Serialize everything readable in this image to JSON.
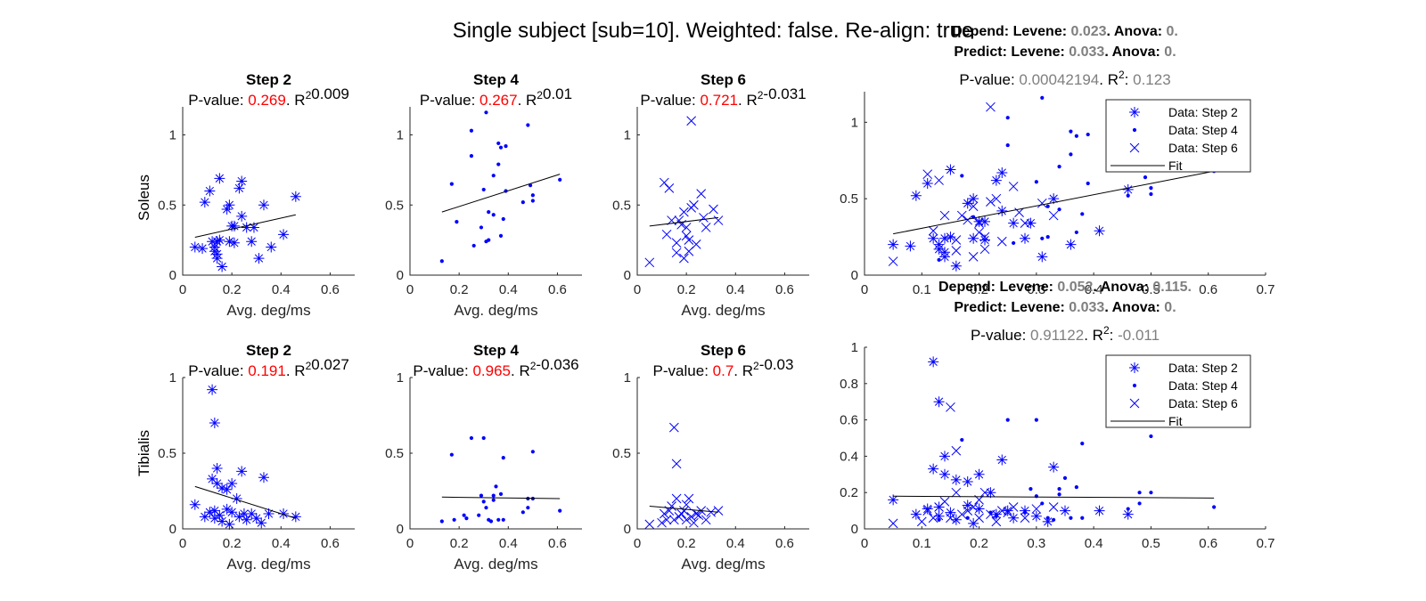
{
  "figure": {
    "title": "Single subject [sub=10]. Weighted: false. Re-align: true"
  },
  "labels": {
    "xlabel": "Avg. deg/ms",
    "row_labels": [
      "Soleus",
      "Tibialis"
    ],
    "pvalue_prefix": "P-value:",
    "r2_base": "R",
    "r2_sup": "2",
    "depend_prefix": "Depend:",
    "predict_prefix": "Predict:",
    "levene_label": "Levene:",
    "anova_label": "Anova:"
  },
  "colors": {
    "data": "#0000ff",
    "fit": "#000000",
    "pvalue_small": "#ff0000",
    "stat_value": "#7f7f7f"
  },
  "chart_data": [
    {
      "type": "scatter",
      "muscle": "Soleus",
      "title": "Step 2",
      "p_value": "0.269",
      "r2": "0.009",
      "marker": "asterisk",
      "xlim": [
        0,
        0.7
      ],
      "ylim": [
        0,
        1.2
      ],
      "xticks": [
        "0",
        "0.2",
        "0.4",
        "0.6"
      ],
      "yticks": [
        "0",
        "0.5",
        "1"
      ],
      "ytick_values": [
        0,
        0.5,
        1
      ],
      "x": [
        0.05,
        0.08,
        0.09,
        0.11,
        0.12,
        0.13,
        0.13,
        0.14,
        0.14,
        0.14,
        0.15,
        0.15,
        0.16,
        0.18,
        0.19,
        0.19,
        0.2,
        0.21,
        0.21,
        0.23,
        0.24,
        0.24,
        0.26,
        0.28,
        0.29,
        0.31,
        0.33,
        0.36,
        0.41,
        0.46
      ],
      "y": [
        0.2,
        0.19,
        0.52,
        0.6,
        0.24,
        0.2,
        0.17,
        0.12,
        0.15,
        0.24,
        0.69,
        0.25,
        0.06,
        0.47,
        0.5,
        0.24,
        0.35,
        0.35,
        0.23,
        0.62,
        0.67,
        0.42,
        0.34,
        0.24,
        0.34,
        0.12,
        0.5,
        0.2,
        0.29,
        0.56
      ],
      "fit": {
        "x": [
          0.05,
          0.46
        ],
        "y": [
          0.27,
          0.43
        ]
      }
    },
    {
      "type": "scatter",
      "muscle": "Soleus",
      "title": "Step 4",
      "p_value": "0.267",
      "r2": "0.01",
      "marker": "dot",
      "xlim": [
        0,
        0.7
      ],
      "ylim": [
        0,
        1.2
      ],
      "xticks": [
        "0",
        "0.2",
        "0.4",
        "0.6"
      ],
      "yticks": [
        "0",
        "0.5",
        "1"
      ],
      "ytick_values": [
        0,
        0.5,
        1
      ],
      "x": [
        0.13,
        0.17,
        0.19,
        0.25,
        0.25,
        0.26,
        0.29,
        0.3,
        0.31,
        0.31,
        0.32,
        0.32,
        0.34,
        0.34,
        0.36,
        0.36,
        0.37,
        0.37,
        0.38,
        0.39,
        0.39,
        0.46,
        0.48,
        0.49,
        0.5,
        0.5,
        0.61
      ],
      "y": [
        0.1,
        0.65,
        0.38,
        1.03,
        0.85,
        0.21,
        0.34,
        0.61,
        1.16,
        0.24,
        0.45,
        0.25,
        0.43,
        0.71,
        0.79,
        0.94,
        0.91,
        0.28,
        0.4,
        0.92,
        0.6,
        0.52,
        1.07,
        0.64,
        0.53,
        0.57,
        0.68
      ],
      "fit": {
        "x": [
          0.13,
          0.61
        ],
        "y": [
          0.45,
          0.72
        ]
      }
    },
    {
      "type": "scatter",
      "muscle": "Soleus",
      "title": "Step 6",
      "p_value": "0.721",
      "r2": "-0.031",
      "marker": "cross",
      "xlim": [
        0,
        0.7
      ],
      "ylim": [
        0,
        1.2
      ],
      "xticks": [
        "0",
        "0.2",
        "0.4",
        "0.6"
      ],
      "yticks": [
        "0",
        "0.5",
        "1"
      ],
      "ytick_values": [
        0,
        0.5,
        1
      ],
      "x": [
        0.05,
        0.11,
        0.12,
        0.13,
        0.14,
        0.16,
        0.16,
        0.17,
        0.18,
        0.19,
        0.19,
        0.2,
        0.2,
        0.21,
        0.21,
        0.22,
        0.22,
        0.23,
        0.24,
        0.26,
        0.27,
        0.28,
        0.31,
        0.33
      ],
      "y": [
        0.09,
        0.66,
        0.29,
        0.62,
        0.39,
        0.23,
        0.16,
        0.39,
        0.36,
        0.45,
        0.12,
        0.28,
        0.34,
        0.17,
        0.25,
        1.1,
        0.48,
        0.5,
        0.22,
        0.58,
        0.41,
        0.34,
        0.47,
        0.39
      ],
      "fit": {
        "x": [
          0.05,
          0.33
        ],
        "y": [
          0.35,
          0.41
        ]
      }
    },
    {
      "type": "scatter",
      "muscle": "Soleus",
      "title": "",
      "p_value": "0.00042194",
      "r2": "0.123",
      "depend": {
        "levene": "0.023",
        "anova": "0"
      },
      "predict": {
        "levene": "0.033",
        "anova": "0"
      },
      "xlim": [
        0,
        0.7
      ],
      "ylim": [
        0,
        1.2
      ],
      "xticks": [
        "0",
        "0.1",
        "0.2",
        "0.3",
        "0.4",
        "0.5",
        "0.6",
        "0.7"
      ],
      "yticks": [
        "0",
        "0.5",
        "1"
      ],
      "ytick_values": [
        0,
        0.5,
        1
      ],
      "legend": [
        "Data: Step 2",
        "Data: Step 4",
        "Data: Step 6",
        "Fit"
      ],
      "legend_position": "top-right",
      "fit": {
        "x": [
          0.05,
          0.61
        ],
        "y": [
          0.27,
          0.68
        ]
      },
      "series": [
        {
          "name": "Data: Step 2",
          "marker": "asterisk",
          "x": [
            0.05,
            0.08,
            0.09,
            0.11,
            0.12,
            0.13,
            0.13,
            0.14,
            0.14,
            0.14,
            0.15,
            0.15,
            0.16,
            0.18,
            0.19,
            0.19,
            0.2,
            0.21,
            0.21,
            0.23,
            0.24,
            0.24,
            0.26,
            0.28,
            0.29,
            0.31,
            0.33,
            0.36,
            0.41,
            0.46
          ],
          "y": [
            0.2,
            0.19,
            0.52,
            0.6,
            0.24,
            0.2,
            0.17,
            0.12,
            0.15,
            0.24,
            0.69,
            0.25,
            0.06,
            0.47,
            0.5,
            0.24,
            0.35,
            0.35,
            0.23,
            0.62,
            0.67,
            0.42,
            0.34,
            0.24,
            0.34,
            0.12,
            0.5,
            0.2,
            0.29,
            0.56
          ]
        },
        {
          "name": "Data: Step 4",
          "marker": "dot",
          "x": [
            0.13,
            0.17,
            0.19,
            0.25,
            0.25,
            0.26,
            0.29,
            0.3,
            0.31,
            0.31,
            0.32,
            0.32,
            0.34,
            0.34,
            0.36,
            0.36,
            0.37,
            0.37,
            0.38,
            0.39,
            0.39,
            0.46,
            0.48,
            0.49,
            0.5,
            0.5,
            0.61
          ],
          "y": [
            0.1,
            0.65,
            0.38,
            1.03,
            0.85,
            0.21,
            0.34,
            0.61,
            1.16,
            0.24,
            0.45,
            0.25,
            0.43,
            0.71,
            0.79,
            0.94,
            0.91,
            0.28,
            0.4,
            0.92,
            0.6,
            0.52,
            1.07,
            0.64,
            0.53,
            0.57,
            0.68
          ]
        },
        {
          "name": "Data: Step 6",
          "marker": "cross",
          "x": [
            0.05,
            0.11,
            0.12,
            0.13,
            0.14,
            0.16,
            0.16,
            0.17,
            0.18,
            0.19,
            0.19,
            0.2,
            0.2,
            0.21,
            0.21,
            0.22,
            0.22,
            0.23,
            0.24,
            0.26,
            0.27,
            0.28,
            0.31,
            0.33
          ],
          "y": [
            0.09,
            0.66,
            0.29,
            0.62,
            0.39,
            0.23,
            0.16,
            0.39,
            0.36,
            0.45,
            0.12,
            0.28,
            0.34,
            0.17,
            0.25,
            1.1,
            0.48,
            0.5,
            0.22,
            0.58,
            0.41,
            0.34,
            0.47,
            0.39
          ]
        }
      ]
    },
    {
      "type": "scatter",
      "muscle": "Tibialis",
      "title": "Step 2",
      "p_value": "0.191",
      "r2": "0.027",
      "marker": "asterisk",
      "xlim": [
        0,
        0.7
      ],
      "ylim": [
        0,
        1
      ],
      "xticks": [
        "0",
        "0.2",
        "0.4",
        "0.6"
      ],
      "yticks": [
        "0",
        "0.5",
        "1"
      ],
      "ytick_values": [
        0,
        0.5,
        1
      ],
      "x": [
        0.05,
        0.09,
        0.11,
        0.12,
        0.12,
        0.13,
        0.13,
        0.13,
        0.14,
        0.14,
        0.15,
        0.16,
        0.16,
        0.18,
        0.18,
        0.19,
        0.2,
        0.2,
        0.22,
        0.23,
        0.24,
        0.25,
        0.26,
        0.28,
        0.3,
        0.32,
        0.33,
        0.35,
        0.41,
        0.46
      ],
      "y": [
        0.16,
        0.08,
        0.11,
        0.92,
        0.33,
        0.7,
        0.07,
        0.12,
        0.3,
        0.4,
        0.09,
        0.05,
        0.27,
        0.26,
        0.13,
        0.03,
        0.3,
        0.11,
        0.2,
        0.08,
        0.38,
        0.1,
        0.06,
        0.1,
        0.07,
        0.04,
        0.34,
        0.1,
        0.1,
        0.08
      ],
      "fit": {
        "x": [
          0.05,
          0.46
        ],
        "y": [
          0.28,
          0.07
        ]
      }
    },
    {
      "type": "scatter",
      "muscle": "Tibialis",
      "title": "Step 4",
      "p_value": "0.965",
      "r2": "-0.036",
      "marker": "dot",
      "xlim": [
        0,
        0.7
      ],
      "ylim": [
        0,
        1
      ],
      "xticks": [
        "0",
        "0.2",
        "0.4",
        "0.6"
      ],
      "yticks": [
        "0",
        "0.5",
        "1"
      ],
      "ytick_values": [
        0,
        0.5,
        1
      ],
      "x": [
        0.13,
        0.17,
        0.18,
        0.22,
        0.23,
        0.25,
        0.28,
        0.29,
        0.3,
        0.3,
        0.31,
        0.32,
        0.33,
        0.34,
        0.34,
        0.35,
        0.36,
        0.37,
        0.38,
        0.38,
        0.46,
        0.48,
        0.48,
        0.5,
        0.5,
        0.61
      ],
      "y": [
        0.05,
        0.49,
        0.06,
        0.09,
        0.07,
        0.6,
        0.09,
        0.22,
        0.18,
        0.6,
        0.14,
        0.06,
        0.05,
        0.19,
        0.22,
        0.28,
        0.06,
        0.23,
        0.47,
        0.06,
        0.11,
        0.2,
        0.14,
        0.2,
        0.51,
        0.12
      ],
      "fit": {
        "x": [
          0.13,
          0.61
        ],
        "y": [
          0.21,
          0.2
        ]
      }
    },
    {
      "type": "scatter",
      "muscle": "Tibialis",
      "title": "Step 6",
      "p_value": "0.7",
      "r2": "-0.03",
      "marker": "cross",
      "xlim": [
        0,
        0.7
      ],
      "ylim": [
        0,
        1
      ],
      "xticks": [
        "0",
        "0.2",
        "0.4",
        "0.6"
      ],
      "yticks": [
        "0",
        "0.5",
        "1"
      ],
      "ytick_values": [
        0,
        0.5,
        1
      ],
      "x": [
        0.05,
        0.1,
        0.11,
        0.12,
        0.13,
        0.14,
        0.15,
        0.15,
        0.16,
        0.16,
        0.17,
        0.18,
        0.19,
        0.2,
        0.2,
        0.21,
        0.22,
        0.23,
        0.24,
        0.25,
        0.26,
        0.28,
        0.3,
        0.33
      ],
      "y": [
        0.03,
        0.04,
        0.1,
        0.06,
        0.12,
        0.15,
        0.06,
        0.67,
        0.2,
        0.43,
        0.08,
        0.1,
        0.12,
        0.16,
        0.06,
        0.2,
        0.08,
        0.04,
        0.1,
        0.09,
        0.12,
        0.06,
        0.11,
        0.12
      ],
      "fit": {
        "x": [
          0.05,
          0.33
        ],
        "y": [
          0.15,
          0.11
        ]
      }
    },
    {
      "type": "scatter",
      "muscle": "Tibialis",
      "title": "",
      "p_value": "0.91122",
      "r2": "-0.011",
      "depend": {
        "levene": "0.052",
        "anova": "0.115"
      },
      "predict": {
        "levene": "0.033",
        "anova": "0"
      },
      "xlim": [
        0,
        0.7
      ],
      "ylim": [
        0,
        1
      ],
      "xticks": [
        "0",
        "0.1",
        "0.2",
        "0.3",
        "0.4",
        "0.5",
        "0.6",
        "0.7"
      ],
      "yticks": [
        "0",
        "0.2",
        "0.4",
        "0.6",
        "0.8",
        "1"
      ],
      "ytick_values": [
        0,
        0.2,
        0.4,
        0.6,
        0.8,
        1
      ],
      "legend": [
        "Data: Step 2",
        "Data: Step 4",
        "Data: Step 6",
        "Fit"
      ],
      "legend_position": "top-right",
      "fit": {
        "x": [
          0.05,
          0.61
        ],
        "y": [
          0.18,
          0.17
        ]
      },
      "series": [
        {
          "name": "Data: Step 2",
          "marker": "asterisk",
          "x": [
            0.05,
            0.09,
            0.11,
            0.12,
            0.12,
            0.13,
            0.13,
            0.13,
            0.14,
            0.14,
            0.15,
            0.16,
            0.16,
            0.18,
            0.18,
            0.19,
            0.2,
            0.2,
            0.22,
            0.23,
            0.24,
            0.25,
            0.26,
            0.28,
            0.3,
            0.32,
            0.33,
            0.35,
            0.41,
            0.46
          ],
          "y": [
            0.16,
            0.08,
            0.11,
            0.92,
            0.33,
            0.7,
            0.07,
            0.12,
            0.3,
            0.4,
            0.09,
            0.05,
            0.27,
            0.26,
            0.13,
            0.03,
            0.3,
            0.11,
            0.2,
            0.08,
            0.38,
            0.1,
            0.06,
            0.1,
            0.07,
            0.04,
            0.34,
            0.1,
            0.1,
            0.08
          ]
        },
        {
          "name": "Data: Step 4",
          "marker": "dot",
          "x": [
            0.13,
            0.17,
            0.18,
            0.22,
            0.23,
            0.25,
            0.28,
            0.29,
            0.3,
            0.3,
            0.31,
            0.32,
            0.33,
            0.34,
            0.34,
            0.35,
            0.36,
            0.37,
            0.38,
            0.38,
            0.46,
            0.48,
            0.48,
            0.5,
            0.5,
            0.61
          ],
          "y": [
            0.05,
            0.49,
            0.06,
            0.09,
            0.07,
            0.6,
            0.09,
            0.22,
            0.18,
            0.6,
            0.14,
            0.06,
            0.05,
            0.19,
            0.22,
            0.28,
            0.06,
            0.23,
            0.47,
            0.06,
            0.11,
            0.2,
            0.14,
            0.2,
            0.51,
            0.12
          ]
        },
        {
          "name": "Data: Step 6",
          "marker": "cross",
          "x": [
            0.05,
            0.1,
            0.11,
            0.12,
            0.13,
            0.14,
            0.15,
            0.15,
            0.16,
            0.16,
            0.17,
            0.18,
            0.19,
            0.2,
            0.2,
            0.21,
            0.22,
            0.23,
            0.24,
            0.25,
            0.26,
            0.28,
            0.3,
            0.33
          ],
          "y": [
            0.03,
            0.04,
            0.1,
            0.06,
            0.12,
            0.15,
            0.06,
            0.67,
            0.2,
            0.43,
            0.08,
            0.1,
            0.12,
            0.16,
            0.06,
            0.2,
            0.08,
            0.04,
            0.1,
            0.09,
            0.12,
            0.06,
            0.11,
            0.12
          ]
        }
      ]
    }
  ]
}
